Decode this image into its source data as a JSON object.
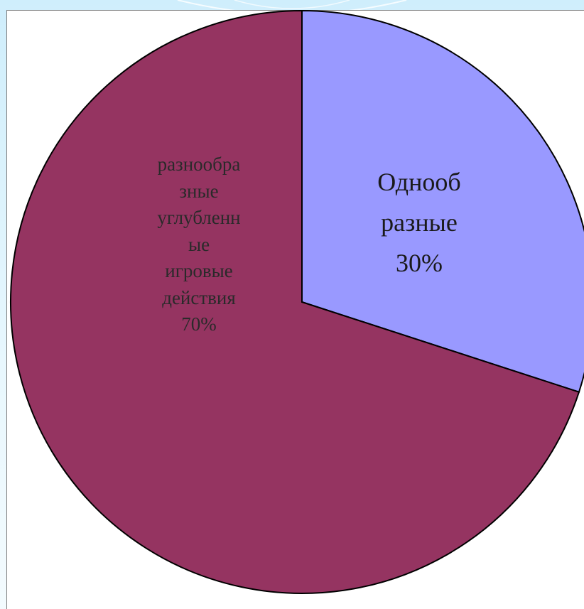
{
  "chart_data": {
    "type": "pie",
    "slices": [
      {
        "label": "разнообра\nзные\nуглубленн\nые\nигровые\nдействия\n70%",
        "value": 70,
        "color": "#953461"
      },
      {
        "label": "Однооб\nразные\n30%",
        "value": 30,
        "color": "#9999ff"
      }
    ],
    "start_angle_deg": 0,
    "direction": "counterclockwise",
    "legend": "none"
  }
}
